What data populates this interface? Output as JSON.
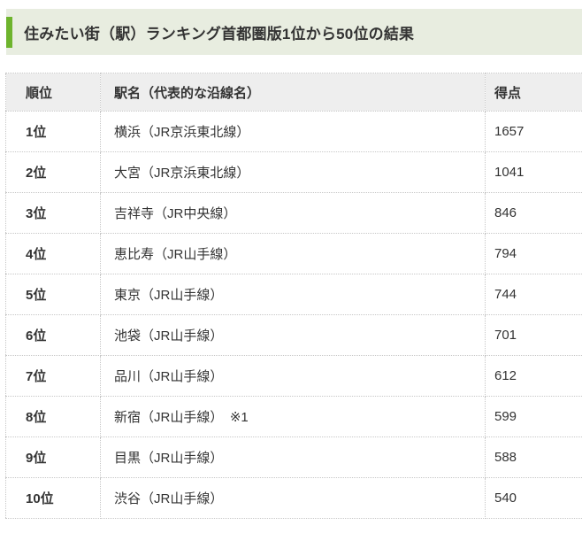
{
  "page": {
    "title": "住みたい街（駅）ランキング首都圏版1位から50位の結果"
  },
  "colors": {
    "accent_green": "#6eb42d",
    "band_bg": "#e8ede0",
    "header_bg": "#eeeeee",
    "border": "#c7c7c7",
    "text": "#333333"
  },
  "table": {
    "columns": {
      "rank": "順位",
      "station": "駅名（代表的な沿線名）",
      "score": "得点"
    },
    "rows": [
      {
        "rank": "1位",
        "station": "横浜（JR京浜東北線）",
        "score": "1657"
      },
      {
        "rank": "2位",
        "station": "大宮（JR京浜東北線）",
        "score": "1041"
      },
      {
        "rank": "3位",
        "station": "吉祥寺（JR中央線）",
        "score": "846"
      },
      {
        "rank": "4位",
        "station": "恵比寿（JR山手線）",
        "score": "794"
      },
      {
        "rank": "5位",
        "station": "東京（JR山手線）",
        "score": "744"
      },
      {
        "rank": "6位",
        "station": "池袋（JR山手線）",
        "score": "701"
      },
      {
        "rank": "7位",
        "station": "品川（JR山手線）",
        "score": "612"
      },
      {
        "rank": "8位",
        "station": "新宿（JR山手線）　※1",
        "score": "599"
      },
      {
        "rank": "9位",
        "station": "目黒（JR山手線）",
        "score": "588"
      },
      {
        "rank": "10位",
        "station": "渋谷（JR山手線）",
        "score": "540"
      }
    ]
  }
}
